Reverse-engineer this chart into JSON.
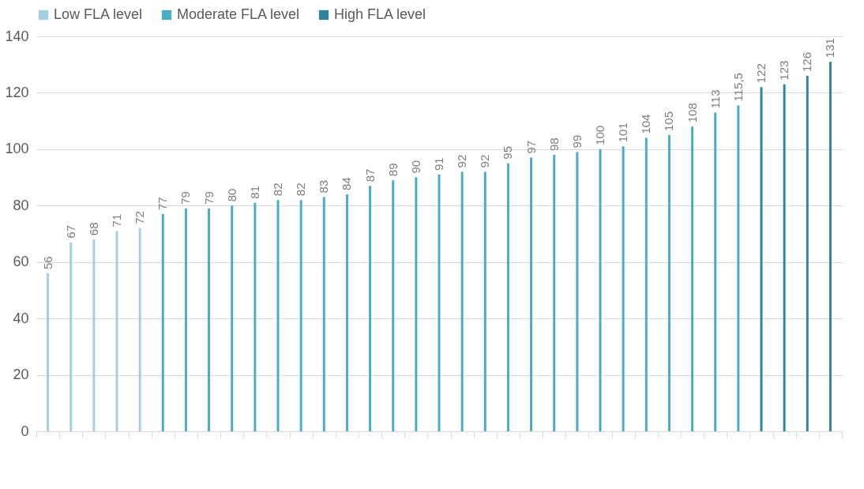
{
  "chart_data": {
    "type": "bar",
    "categories": [
      null,
      null,
      null,
      null,
      null,
      null,
      null,
      null,
      null,
      null,
      null,
      null,
      null,
      null,
      null,
      null,
      null,
      null,
      null,
      null,
      null,
      null,
      null,
      null,
      null,
      null,
      null,
      null,
      null,
      null,
      null,
      null,
      null,
      null,
      null
    ],
    "series": [
      {
        "name": "Low FLA level",
        "color": "#a5cfe0",
        "values": [
          56,
          67,
          68,
          71,
          72,
          null,
          null,
          null,
          null,
          null,
          null,
          null,
          null,
          null,
          null,
          null,
          null,
          null,
          null,
          null,
          null,
          null,
          null,
          null,
          null,
          null,
          null,
          null,
          null,
          null,
          null,
          null,
          null,
          null,
          null
        ],
        "value_labels": [
          "56",
          "67",
          "68",
          "71",
          "72",
          null,
          null,
          null,
          null,
          null,
          null,
          null,
          null,
          null,
          null,
          null,
          null,
          null,
          null,
          null,
          null,
          null,
          null,
          null,
          null,
          null,
          null,
          null,
          null,
          null,
          null,
          null,
          null,
          null,
          null
        ]
      },
      {
        "name": "Moderate FLA level",
        "color": "#4bacc6",
        "values": [
          null,
          null,
          null,
          null,
          null,
          77,
          79,
          79,
          80,
          81,
          82,
          82,
          83,
          84,
          87,
          89,
          90,
          91,
          92,
          92,
          95,
          97,
          98,
          99,
          100,
          101,
          104,
          105,
          108,
          113,
          115.5,
          null,
          null,
          null,
          null
        ],
        "value_labels": [
          null,
          null,
          null,
          null,
          null,
          "77",
          "79",
          "79",
          "80",
          "81",
          "82",
          "82",
          "83",
          "84",
          "87",
          "89",
          "90",
          "91",
          "92",
          "92",
          "95",
          "97",
          "98",
          "99",
          "100",
          "101",
          "104",
          "105",
          "108",
          "113",
          "115,5",
          null,
          null,
          null,
          null
        ]
      },
      {
        "name": "High FLA level",
        "color": "#31849b",
        "values": [
          null,
          null,
          null,
          null,
          null,
          null,
          null,
          null,
          null,
          null,
          null,
          null,
          null,
          null,
          null,
          null,
          null,
          null,
          null,
          null,
          null,
          null,
          null,
          null,
          null,
          null,
          null,
          null,
          null,
          null,
          null,
          122,
          123,
          126,
          131
        ],
        "value_labels": [
          null,
          null,
          null,
          null,
          null,
          null,
          null,
          null,
          null,
          null,
          null,
          null,
          null,
          null,
          null,
          null,
          null,
          null,
          null,
          null,
          null,
          null,
          null,
          null,
          null,
          null,
          null,
          null,
          null,
          null,
          null,
          "122",
          "123",
          "126",
          "131"
        ]
      }
    ],
    "ylim": [
      0,
      140
    ],
    "yticks": [
      0,
      20,
      40,
      60,
      80,
      100,
      120,
      140
    ],
    "grid": "y",
    "legend": "top",
    "tick_labels": "y"
  }
}
